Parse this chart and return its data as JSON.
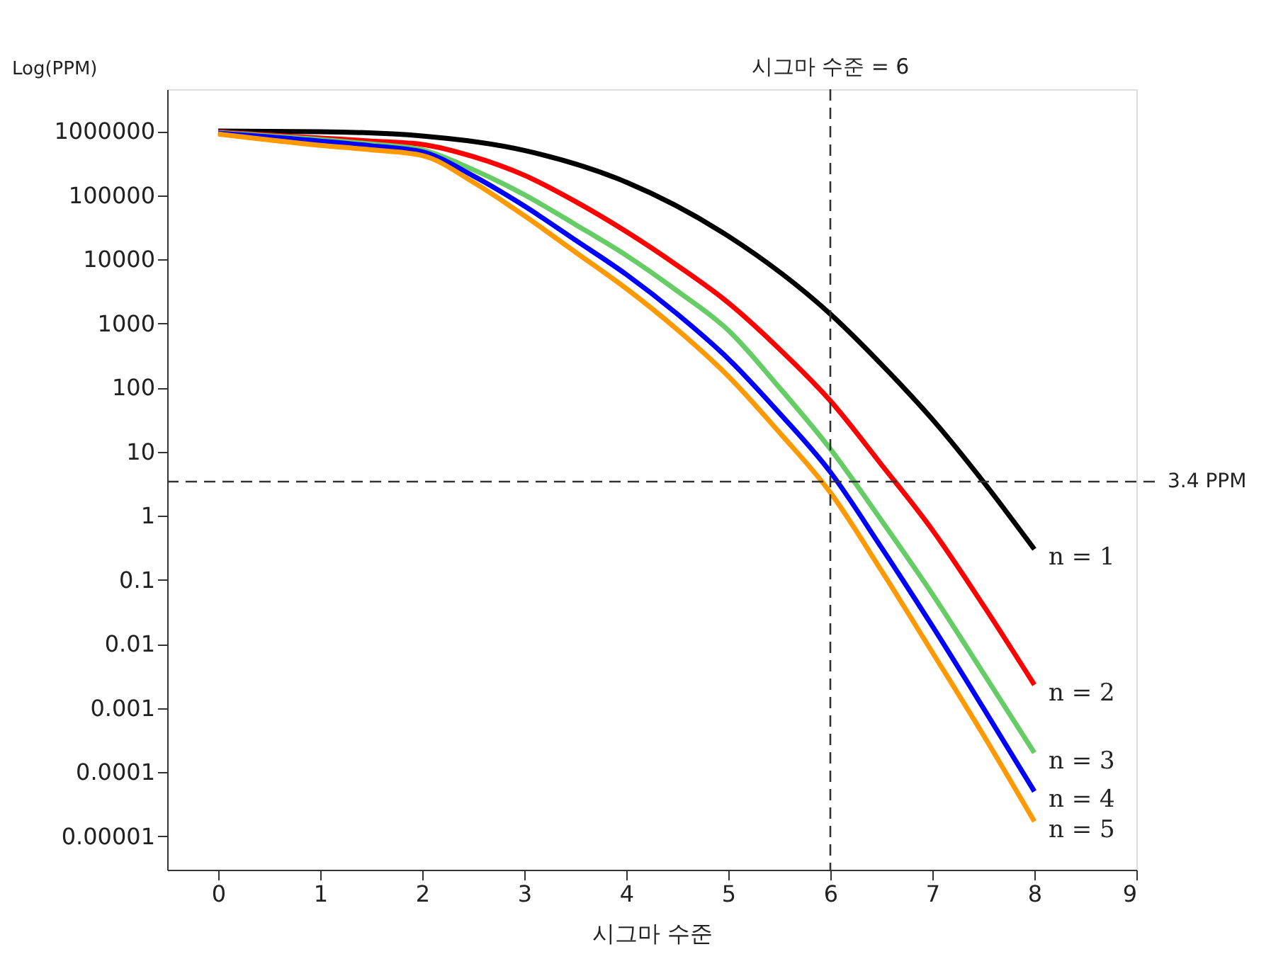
{
  "chart_data": {
    "type": "line",
    "xlabel": "시그마 수준",
    "ylabel": "Log(PPM)",
    "log": "y",
    "grid": false,
    "marker": "none",
    "line_style": "solid",
    "x": [
      0,
      1,
      1.5,
      2,
      2.5,
      3,
      3.5,
      4,
      4.5,
      5,
      5.5,
      6,
      6.5,
      7,
      7.5,
      8
    ],
    "xlim": [
      -0.5,
      9
    ],
    "xticks": [
      0,
      1,
      2,
      3,
      4,
      5,
      6,
      7,
      8,
      9
    ],
    "ylim": [
      3e-06,
      4500000
    ],
    "yticks": [
      1000000,
      100000,
      10000,
      1000,
      100,
      10,
      1,
      0.1,
      0.01,
      0.001,
      0.0001,
      {
        "value": 1e-05,
        "label": "0.00001"
      }
    ],
    "series": [
      {
        "name": "n = 1",
        "color": "#000000",
        "x": [
          0,
          1,
          2,
          3,
          4,
          5,
          6,
          6.5,
          7,
          7.5,
          8
        ],
        "values": [
          1000000,
          980000,
          840000,
          500000,
          160000,
          23000,
          1400,
          230,
          32,
          3.4,
          0.3
        ]
      },
      {
        "name": "n = 2",
        "color": "#ff0000",
        "values": [
          970000,
          780000,
          700000,
          620000,
          400000,
          205000,
          80000,
          27000,
          8000,
          2100,
          400,
          62,
          6.3,
          0.6,
          0.04,
          0.0023
        ]
      },
      {
        "name": "n = 3",
        "color": "#66cc66",
        "values": [
          950000,
          740000,
          630000,
          510000,
          250000,
          102000,
          35000,
          11500,
          3200,
          780,
          100,
          11,
          0.85,
          0.06,
          0.0035,
          0.0002
        ]
      },
      {
        "name": "n = 4",
        "color": "#0000ff",
        "values": [
          930000,
          700000,
          590000,
          475000,
          200000,
          68000,
          20000,
          5800,
          1400,
          280,
          40,
          4.8,
          0.32,
          0.019,
          0.001,
          5e-05
        ]
      },
      {
        "name": "n = 5",
        "color": "#ff9900",
        "values": [
          900000,
          600000,
          510000,
          415000,
          160000,
          48000,
          13000,
          3500,
          800,
          150,
          20,
          2.3,
          0.14,
          0.0074,
          0.00038,
          1.7e-05
        ]
      }
    ],
    "ref_lines": [
      {
        "axis": "x",
        "value": 6,
        "label": "시그마 수준 = 6",
        "color": "#333333",
        "line_style": "dashed"
      },
      {
        "axis": "y",
        "value": 3.4,
        "label": "3.4 PPM",
        "color": "#333333",
        "line_style": "dashed"
      }
    ]
  }
}
